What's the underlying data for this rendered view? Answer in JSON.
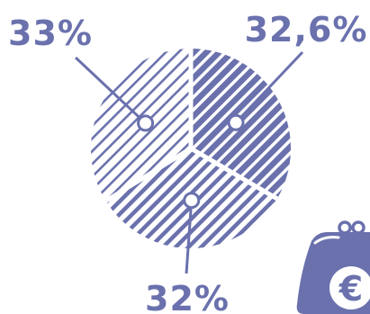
{
  "colors": {
    "accent": "#6a71ad",
    "background": "#ffffff"
  },
  "chart_data": {
    "type": "pie",
    "slices": [
      {
        "label": "32,6%",
        "value": 32.6,
        "pattern": "dense-hatch"
      },
      {
        "label": "32%",
        "value": 32,
        "pattern": "wide-hatch"
      },
      {
        "label": "33%",
        "value": 33,
        "pattern": "sparse-hatch"
      }
    ]
  },
  "icon": {
    "name": "coin-purse-euro-icon",
    "symbol": "€"
  }
}
